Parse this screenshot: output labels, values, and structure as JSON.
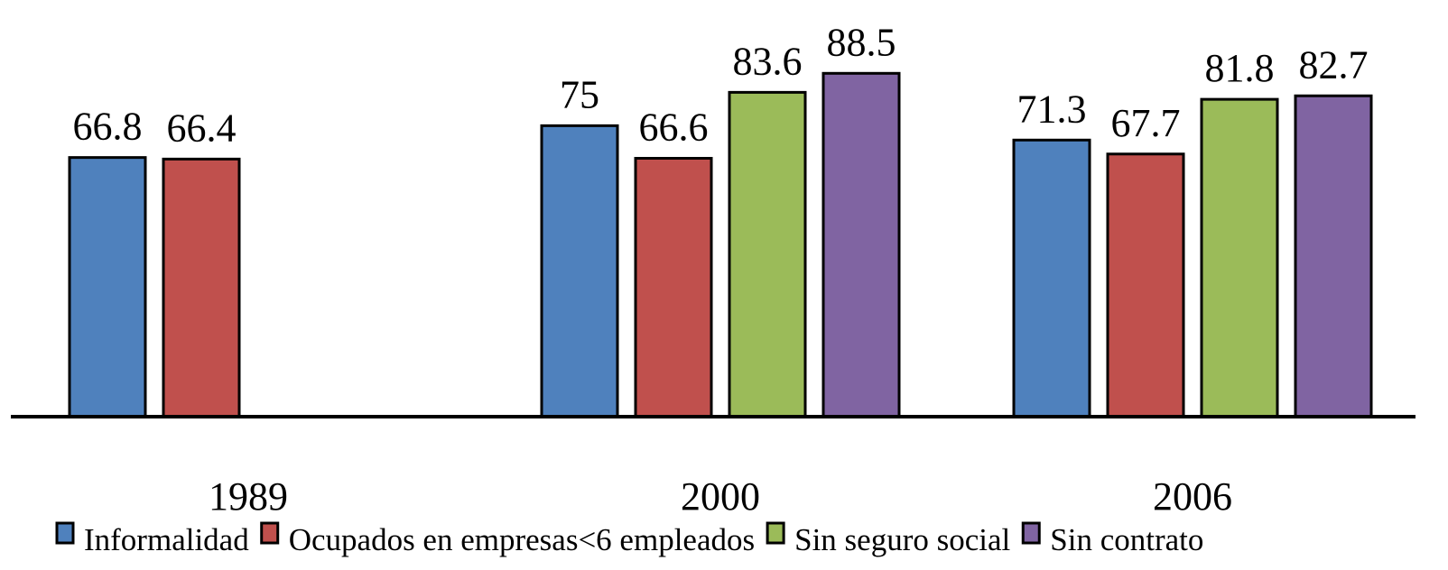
{
  "chart_data": {
    "type": "bar",
    "categories": [
      "1989",
      "2000",
      "2006"
    ],
    "series": [
      {
        "name": "Informalidad",
        "color": "#4f81bd",
        "values": [
          66.8,
          75,
          71.3
        ]
      },
      {
        "name": "Ocupados en empresas<6 empleados",
        "color": "#c0504d",
        "values": [
          66.4,
          66.6,
          67.7
        ]
      },
      {
        "name": "Sin seguro social",
        "color": "#9bbb59",
        "values": [
          null,
          83.6,
          81.8
        ]
      },
      {
        "name": "Sin contrato",
        "color": "#8064a2",
        "values": [
          null,
          88.5,
          82.7
        ]
      }
    ],
    "ylim": [
      0,
      107.4
    ],
    "legend": "bottom"
  }
}
